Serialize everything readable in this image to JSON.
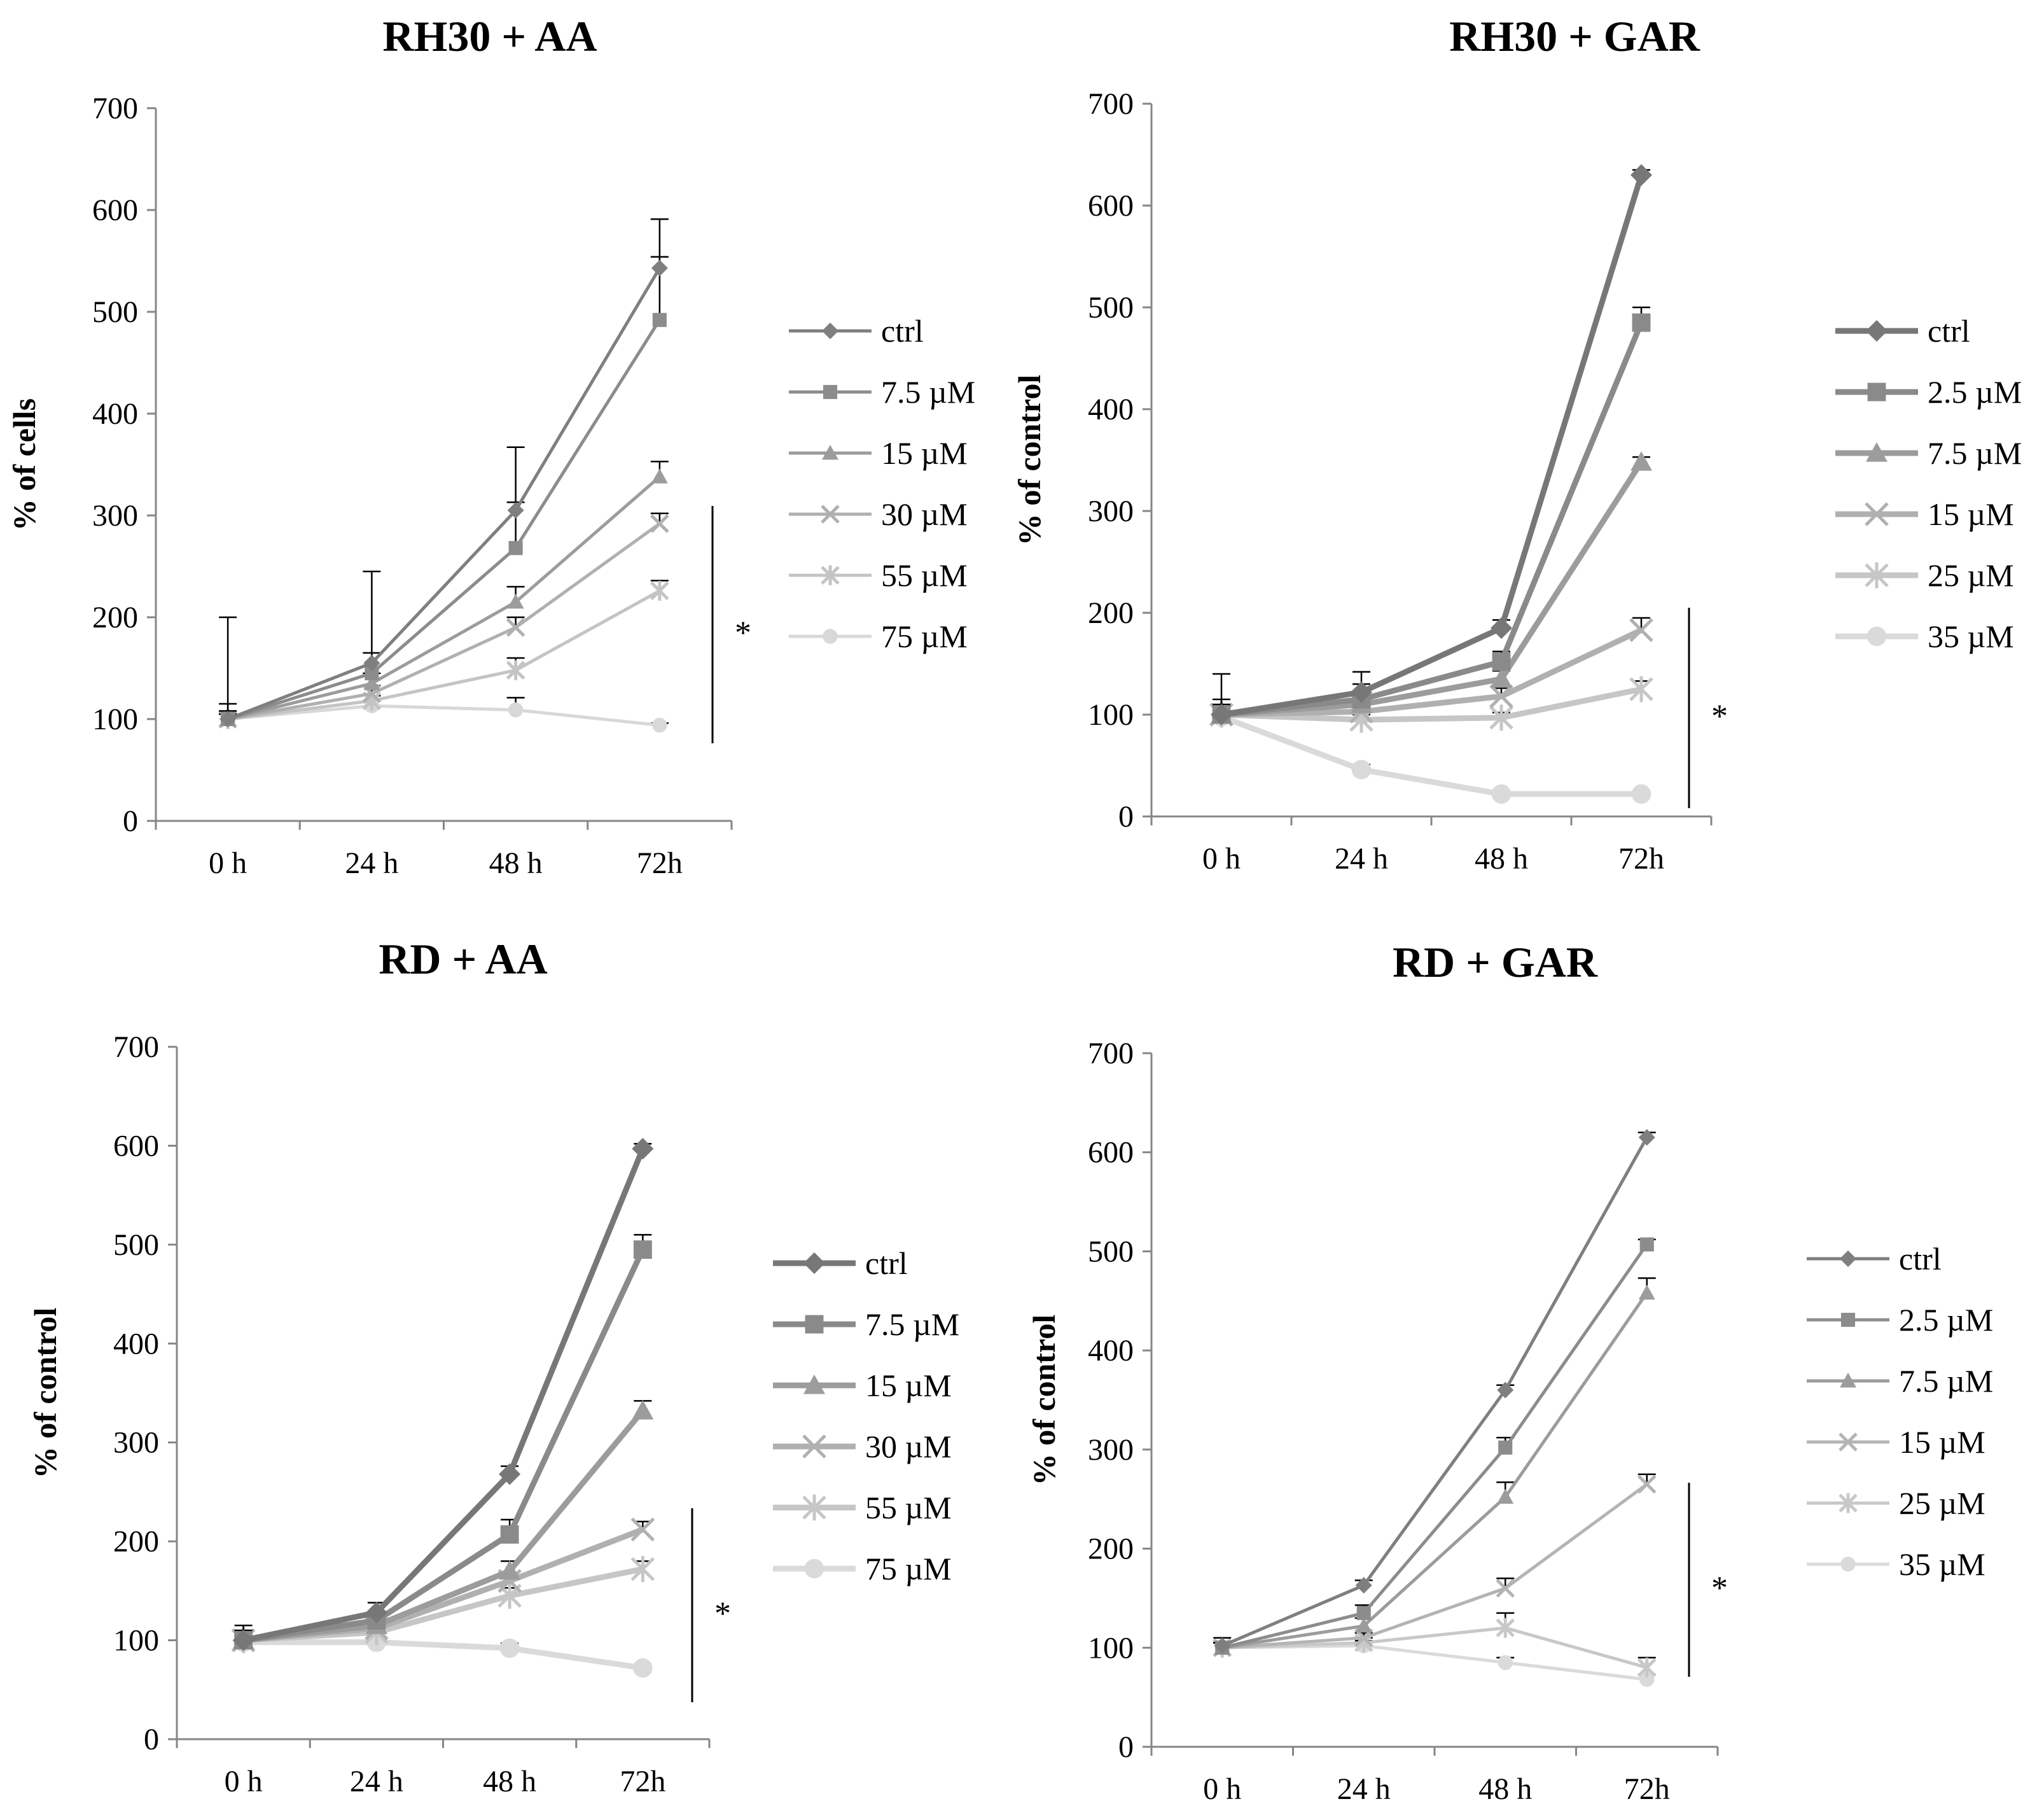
{
  "chart_data": [
    {
      "type": "line",
      "title": "RH30 + AA",
      "xlabel": "",
      "ylabel": "% of cells",
      "categories": [
        "0 h",
        "24 h",
        "48 h",
        "72h"
      ],
      "ylim": [
        0,
        700
      ],
      "yticks": [
        0,
        100,
        200,
        300,
        400,
        500,
        600,
        700
      ],
      "significance": "*",
      "series": [
        {
          "name": "ctrl",
          "values": [
            100,
            155,
            305,
            543
          ],
          "err": [
            100,
            90,
            62,
            48
          ],
          "marker": "diamond",
          "color": "#7f7f7f"
        },
        {
          "name": "7.5 µM",
          "values": [
            100,
            145,
            268,
            492
          ],
          "err": [
            15,
            20,
            45,
            62
          ],
          "marker": "square",
          "color": "#8c8c8c"
        },
        {
          "name": "15 µM",
          "values": [
            100,
            135,
            215,
            338
          ],
          "err": [
            8,
            10,
            15,
            15
          ],
          "marker": "triangle",
          "color": "#9c9c9c"
        },
        {
          "name": "30 µM",
          "values": [
            100,
            125,
            190,
            292
          ],
          "err": [
            5,
            8,
            10,
            10
          ],
          "marker": "x",
          "color": "#b0b0b0"
        },
        {
          "name": "55 µM",
          "values": [
            100,
            118,
            148,
            226
          ],
          "err": [
            5,
            5,
            12,
            10
          ],
          "marker": "star",
          "color": "#c4c4c4"
        },
        {
          "name": "75 µM",
          "values": [
            100,
            113,
            109,
            94
          ],
          "err": [
            5,
            5,
            12,
            2
          ],
          "marker": "circle",
          "color": "#d8d8d8"
        }
      ]
    },
    {
      "type": "line",
      "title": "RH30 + GAR",
      "xlabel": "",
      "ylabel": "% of control",
      "categories": [
        "0 h",
        "24 h",
        "48 h",
        "72h"
      ],
      "ylim": [
        0,
        700
      ],
      "yticks": [
        0,
        100,
        200,
        300,
        400,
        500,
        600,
        700
      ],
      "significance": "*",
      "series": [
        {
          "name": "ctrl",
          "values": [
            100,
            122,
            185,
            630
          ],
          "err": [
            40,
            20,
            8,
            5
          ],
          "marker": "diamond",
          "color": "#777777"
        },
        {
          "name": "2.5 µM",
          "values": [
            100,
            115,
            152,
            485
          ],
          "err": [
            15,
            15,
            10,
            15
          ],
          "marker": "square",
          "color": "#8a8a8a"
        },
        {
          "name": "7.5 µM",
          "values": [
            100,
            110,
            135,
            348
          ],
          "err": [
            10,
            10,
            8,
            5
          ],
          "marker": "triangle",
          "color": "#9c9c9c"
        },
        {
          "name": "15 µM",
          "values": [
            100,
            103,
            118,
            183
          ],
          "err": [
            5,
            8,
            8,
            12
          ],
          "marker": "x",
          "color": "#b0b0b0"
        },
        {
          "name": "25 µM",
          "values": [
            100,
            95,
            97,
            125
          ],
          "err": [
            5,
            5,
            5,
            8
          ],
          "marker": "star",
          "color": "#c6c6c6"
        },
        {
          "name": "35 µM",
          "values": [
            98,
            46,
            22,
            22
          ],
          "err": [
            5,
            5,
            3,
            3
          ],
          "marker": "circle",
          "color": "#dadada"
        }
      ]
    },
    {
      "type": "line",
      "title": "RD + AA",
      "xlabel": "",
      "ylabel": "% of control",
      "categories": [
        "0 h",
        "24 h",
        "48 h",
        "72h"
      ],
      "ylim": [
        0,
        700
      ],
      "yticks": [
        0,
        100,
        200,
        300,
        400,
        500,
        600,
        700
      ],
      "significance": "*",
      "series": [
        {
          "name": "ctrl",
          "values": [
            100,
            128,
            268,
            597
          ],
          "err": [
            15,
            10,
            8,
            5
          ],
          "marker": "diamond",
          "color": "#777777"
        },
        {
          "name": "7.5 µM",
          "values": [
            100,
            120,
            207,
            495
          ],
          "err": [
            10,
            8,
            15,
            15
          ],
          "marker": "square",
          "color": "#8a8a8a"
        },
        {
          "name": "15 µM",
          "values": [
            100,
            115,
            170,
            332
          ],
          "err": [
            8,
            8,
            10,
            10
          ],
          "marker": "triangle",
          "color": "#9c9c9c"
        },
        {
          "name": "30 µM",
          "values": [
            100,
            112,
            160,
            212
          ],
          "err": [
            5,
            5,
            8,
            8
          ],
          "marker": "x",
          "color": "#b0b0b0"
        },
        {
          "name": "55 µM",
          "values": [
            100,
            108,
            145,
            172
          ],
          "err": [
            5,
            5,
            8,
            8
          ],
          "marker": "star",
          "color": "#c6c6c6"
        },
        {
          "name": "75 µM",
          "values": [
            98,
            98,
            92,
            72
          ],
          "err": [
            5,
            5,
            5,
            3
          ],
          "marker": "circle",
          "color": "#dadada"
        }
      ]
    },
    {
      "type": "line",
      "title": "RD + GAR",
      "xlabel": "",
      "ylabel": "% of control",
      "categories": [
        "0 h",
        "24 h",
        "48 h",
        "72h"
      ],
      "ylim": [
        0,
        700
      ],
      "yticks": [
        0,
        100,
        200,
        300,
        400,
        500,
        600,
        700
      ],
      "significance": "*",
      "series": [
        {
          "name": "ctrl",
          "values": [
            102,
            163,
            360,
            615
          ],
          "err": [
            8,
            5,
            5,
            5
          ],
          "marker": "diamond",
          "color": "#7f7f7f"
        },
        {
          "name": "2.5 µM",
          "values": [
            100,
            135,
            302,
            507
          ],
          "err": [
            5,
            8,
            10,
            5
          ],
          "marker": "square",
          "color": "#8c8c8c"
        },
        {
          "name": "7.5 µM",
          "values": [
            100,
            122,
            252,
            458
          ],
          "err": [
            5,
            8,
            15,
            15
          ],
          "marker": "triangle",
          "color": "#9c9c9c"
        },
        {
          "name": "15 µM",
          "values": [
            100,
            110,
            160,
            265
          ],
          "err": [
            5,
            5,
            10,
            10
          ],
          "marker": "x",
          "color": "#b4b4b4"
        },
        {
          "name": "25 µM",
          "values": [
            100,
            105,
            120,
            80
          ],
          "err": [
            5,
            5,
            15,
            10
          ],
          "marker": "star",
          "color": "#c8c8c8"
        },
        {
          "name": "35 µM",
          "values": [
            100,
            102,
            85,
            68
          ],
          "err": [
            5,
            5,
            5,
            5
          ],
          "marker": "circle",
          "color": "#dadada"
        }
      ]
    }
  ]
}
